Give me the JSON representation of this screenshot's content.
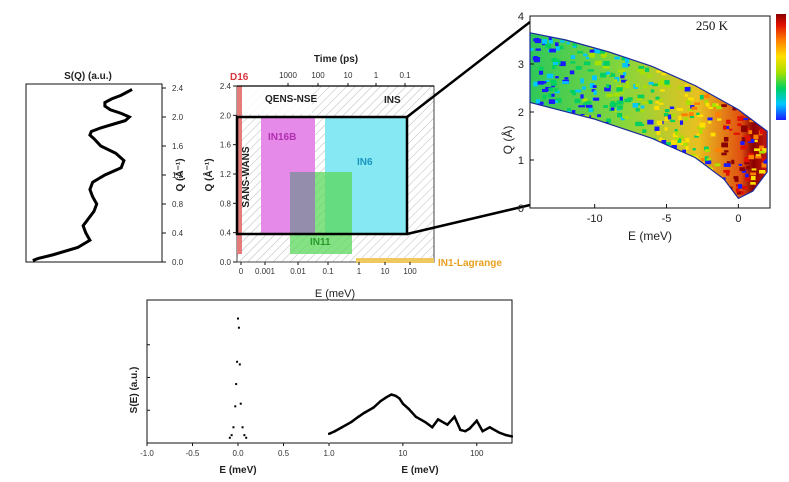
{
  "chart_data": [
    {
      "type": "line",
      "id": "sq-profile",
      "title": "S(Q) (a.u.)",
      "xlabel": "S(Q) (a.u.)",
      "ylabel": "Q (Å⁻¹)",
      "ylim": [
        0.0,
        2.4
      ],
      "yticks": [
        "0.0",
        "0.4",
        "0.8",
        "1.2",
        "1.6",
        "2.0",
        "2.4"
      ],
      "x": [
        0.05,
        0.09,
        0.2,
        0.38,
        0.47,
        0.44,
        0.42,
        0.46,
        0.5,
        0.52,
        0.49,
        0.47,
        0.49,
        0.58,
        0.7,
        0.72,
        0.66,
        0.55,
        0.5,
        0.47,
        0.48,
        0.55,
        0.64,
        0.73,
        0.76,
        0.7,
        0.62,
        0.58,
        0.58,
        0.63,
        0.7,
        0.78
      ],
      "y": [
        0.02,
        0.05,
        0.1,
        0.2,
        0.3,
        0.4,
        0.5,
        0.6,
        0.7,
        0.8,
        0.9,
        1.0,
        1.1,
        1.2,
        1.3,
        1.4,
        1.5,
        1.6,
        1.7,
        1.75,
        1.8,
        1.85,
        1.9,
        1.95,
        2.0,
        2.05,
        2.1,
        2.15,
        2.2,
        2.25,
        2.3,
        2.38
      ]
    },
    {
      "type": "map",
      "id": "instrument-coverage",
      "top_axis_title": "Time (ps)",
      "top_ticks": [
        "1000",
        "100",
        "10",
        "1",
        "0.1"
      ],
      "xlabel": "E (meV)",
      "xticks": [
        "0",
        "0.001",
        "0.01",
        "0.1",
        "1",
        "10",
        "100"
      ],
      "ylabel": "Q (Å⁻¹)",
      "ylim": [
        0.0,
        2.4
      ],
      "yticks": [
        "0.0",
        "0.4",
        "0.8",
        "1.2",
        "1.6",
        "2.0",
        "2.4"
      ],
      "highlight_box": {
        "q_min": 0.4,
        "q_max": 2.0
      },
      "regions": [
        {
          "name": "D16",
          "color": "#d9363e"
        },
        {
          "name": "QENS-NSE",
          "color": "#222222"
        },
        {
          "name": "INS",
          "color": "#222222"
        },
        {
          "name": "SANS-WANS",
          "color": "#222222"
        },
        {
          "name": "IN16B",
          "color": "#c040c0"
        },
        {
          "name": "IN6",
          "color": "#22a6c8"
        },
        {
          "name": "IN11",
          "color": "#33aa33"
        },
        {
          "name": "IN1-Lagrange",
          "color": "#e8a020"
        }
      ]
    },
    {
      "type": "heatmap",
      "id": "sqe-map",
      "annotation": "250 K",
      "xlabel": "E (meV)",
      "xticks": [
        -10,
        -5,
        0
      ],
      "xlim": [
        -14.5,
        2.2
      ],
      "ylabel": "Q (Å)",
      "ylim": [
        0,
        4
      ],
      "yticks": [
        0,
        1,
        2,
        3,
        4
      ],
      "upper_boundary": {
        "E": [
          -14.5,
          -12,
          -9,
          -6,
          -3,
          0,
          2
        ],
        "Q": [
          3.65,
          3.5,
          3.25,
          2.95,
          2.55,
          2.05,
          1.6
        ]
      },
      "lower_boundary": {
        "E": [
          -14.5,
          -10,
          -6,
          -3,
          -1,
          0,
          1,
          2
        ],
        "Q": [
          2.2,
          1.85,
          1.45,
          1.05,
          0.6,
          0.2,
          0.35,
          0.75
        ]
      },
      "colormap": [
        "#1a1aff",
        "#00c8ff",
        "#00d060",
        "#a8e000",
        "#ffe000",
        "#ff8000",
        "#e01000",
        "#8b0000"
      ]
    },
    {
      "type": "scatter",
      "id": "se-spectrum",
      "ylabel": "S(E) (a.u.)",
      "panels": [
        {
          "xlabel": "E (meV)",
          "xlim": [
            -1.0,
            1.0
          ],
          "xticks": [
            "-1.0",
            "-0.5",
            "0.0",
            "0.5",
            "1.0"
          ],
          "x": [
            -0.09,
            -0.07,
            -0.05,
            -0.03,
            -0.02,
            -0.01,
            0.0,
            0.01,
            0.02,
            0.03,
            0.05,
            0.07,
            0.09
          ],
          "y": [
            0.04,
            0.06,
            0.12,
            0.28,
            0.45,
            0.62,
            0.95,
            0.88,
            0.6,
            0.3,
            0.12,
            0.06,
            0.04
          ]
        },
        {
          "xlabel": "E (meV)",
          "xscale": "log",
          "xlim": [
            1,
            300
          ],
          "xticks": [
            "10",
            "100"
          ],
          "x": [
            1.0,
            1.2,
            1.5,
            2.0,
            2.5,
            3.0,
            4.0,
            5.0,
            6.0,
            7.0,
            8.0,
            9.0,
            10,
            12,
            15,
            20,
            25,
            30,
            40,
            50,
            60,
            70,
            80,
            100,
            120,
            150,
            200,
            250,
            300
          ],
          "y": [
            0.07,
            0.09,
            0.12,
            0.16,
            0.2,
            0.23,
            0.27,
            0.32,
            0.35,
            0.37,
            0.36,
            0.34,
            0.3,
            0.26,
            0.2,
            0.16,
            0.12,
            0.18,
            0.14,
            0.2,
            0.1,
            0.09,
            0.11,
            0.17,
            0.09,
            0.12,
            0.08,
            0.06,
            0.05
          ]
        }
      ]
    }
  ]
}
